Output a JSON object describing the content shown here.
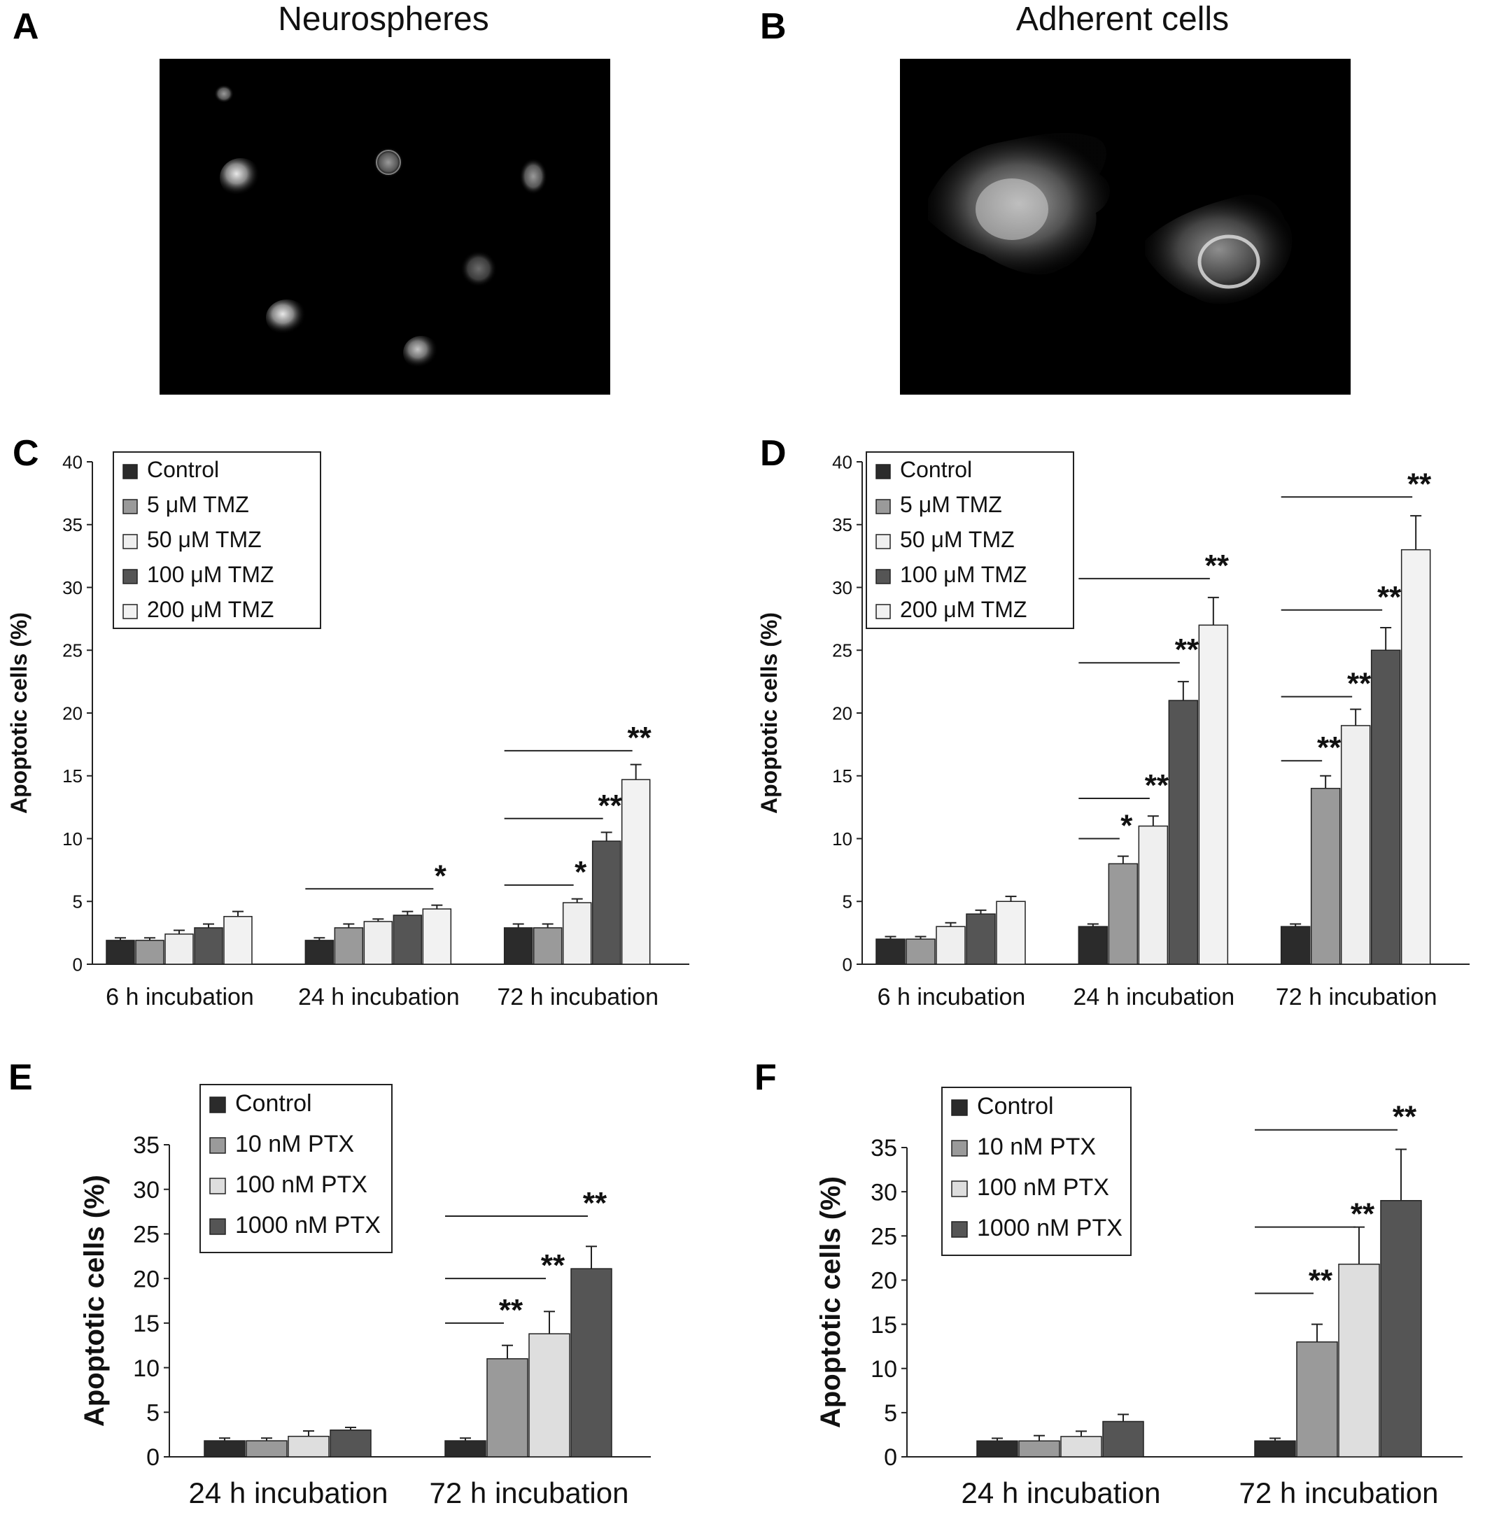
{
  "panels": {
    "A": {
      "letter": "A",
      "title": "Neurospheres"
    },
    "B": {
      "letter": "B",
      "title": "Adherent cells"
    },
    "C": {
      "letter": "C"
    },
    "D": {
      "letter": "D"
    },
    "E": {
      "letter": "E"
    },
    "F": {
      "letter": "F"
    }
  },
  "colors": {
    "control": "#2b2b2b",
    "dose1": "#9a9a9a",
    "dose2": "#efefef",
    "dose3": "#555555",
    "dose4": "#f2f2f2",
    "ptx_light": "#dedede"
  },
  "chart_data": [
    {
      "id": "C",
      "type": "bar",
      "ylabel": "Apoptotic cells (%)",
      "ylim": [
        0,
        40
      ],
      "yticks": [
        0,
        5,
        10,
        15,
        20,
        25,
        30,
        35,
        40
      ],
      "categories": [
        "6 h incubation",
        "24 h incubation",
        "72 h incubation"
      ],
      "legend_position": "top-left",
      "series": [
        {
          "name": "Control",
          "color": "#2b2b2b",
          "values": [
            1.9,
            1.9,
            2.9
          ],
          "errors": [
            0.2,
            0.2,
            0.3
          ]
        },
        {
          "name": "5 μM TMZ",
          "color": "#9a9a9a",
          "values": [
            1.9,
            2.9,
            2.9
          ],
          "errors": [
            0.2,
            0.3,
            0.3
          ]
        },
        {
          "name": "50 μM TMZ",
          "color": "#efefef",
          "values": [
            2.4,
            3.4,
            4.9
          ],
          "errors": [
            0.3,
            0.2,
            0.3
          ]
        },
        {
          "name": "100 μM TMZ",
          "color": "#555555",
          "values": [
            2.9,
            3.9,
            9.8
          ],
          "errors": [
            0.3,
            0.3,
            0.7
          ]
        },
        {
          "name": "200 μM TMZ",
          "color": "#f2f2f2",
          "values": [
            3.8,
            4.4,
            14.7
          ],
          "errors": [
            0.4,
            0.3,
            1.2
          ]
        }
      ],
      "annotations": [
        {
          "category": 1,
          "from": 0,
          "to": 4,
          "label": "*",
          "y": 6.0
        },
        {
          "category": 2,
          "from": 0,
          "to": 2,
          "label": "*",
          "y": 6.3
        },
        {
          "category": 2,
          "from": 0,
          "to": 3,
          "label": "**",
          "y": 11.6
        },
        {
          "category": 2,
          "from": 0,
          "to": 4,
          "label": "**",
          "y": 17.0
        }
      ]
    },
    {
      "id": "D",
      "type": "bar",
      "ylabel": "Apoptotic cells (%)",
      "ylim": [
        0,
        40
      ],
      "yticks": [
        0,
        5,
        10,
        15,
        20,
        25,
        30,
        35,
        40
      ],
      "categories": [
        "6 h incubation",
        "24 h incubation",
        "72 h incubation"
      ],
      "legend_position": "top-left",
      "series": [
        {
          "name": "Control",
          "color": "#2b2b2b",
          "values": [
            2.0,
            3.0,
            3.0
          ],
          "errors": [
            0.2,
            0.2,
            0.2
          ]
        },
        {
          "name": "5 μM TMZ",
          "color": "#9a9a9a",
          "values": [
            2.0,
            8.0,
            14.0
          ],
          "errors": [
            0.2,
            0.6,
            1.0
          ]
        },
        {
          "name": "50 μM TMZ",
          "color": "#efefef",
          "values": [
            3.0,
            11.0,
            19.0
          ],
          "errors": [
            0.3,
            0.8,
            1.3
          ]
        },
        {
          "name": "100 μM TMZ",
          "color": "#555555",
          "values": [
            4.0,
            21.0,
            25.0
          ],
          "errors": [
            0.3,
            1.5,
            1.8
          ]
        },
        {
          "name": "200 μM TMZ",
          "color": "#f2f2f2",
          "values": [
            5.0,
            27.0,
            33.0
          ],
          "errors": [
            0.4,
            2.2,
            2.7
          ]
        }
      ],
      "annotations": [
        {
          "category": 1,
          "from": 0,
          "to": 1,
          "label": "*",
          "y": 10.0
        },
        {
          "category": 1,
          "from": 0,
          "to": 2,
          "label": "**",
          "y": 13.2
        },
        {
          "category": 1,
          "from": 0,
          "to": 3,
          "label": "**",
          "y": 24.0
        },
        {
          "category": 1,
          "from": 0,
          "to": 4,
          "label": "**",
          "y": 30.7
        },
        {
          "category": 2,
          "from": 0,
          "to": 1,
          "label": "**",
          "y": 16.2
        },
        {
          "category": 2,
          "from": 0,
          "to": 2,
          "label": "**",
          "y": 21.3
        },
        {
          "category": 2,
          "from": 0,
          "to": 3,
          "label": "**",
          "y": 28.2
        },
        {
          "category": 2,
          "from": 0,
          "to": 4,
          "label": "**",
          "y": 37.2
        }
      ]
    },
    {
      "id": "E",
      "type": "bar",
      "ylabel": "Apoptotic cells (%)",
      "ylim": [
        0,
        35
      ],
      "yticks": [
        0,
        5,
        10,
        15,
        20,
        25,
        30,
        35
      ],
      "categories": [
        "24 h incubation",
        "72 h incubation"
      ],
      "legend_position": "top-left",
      "series": [
        {
          "name": "Control",
          "color": "#2b2b2b",
          "values": [
            1.8,
            1.8
          ],
          "errors": [
            0.3,
            0.3
          ]
        },
        {
          "name": "10 nM PTX",
          "color": "#9a9a9a",
          "values": [
            1.8,
            11.0
          ],
          "errors": [
            0.3,
            1.5
          ]
        },
        {
          "name": "100 nM PTX",
          "color": "#dedede",
          "values": [
            2.3,
            13.8
          ],
          "errors": [
            0.6,
            2.5
          ]
        },
        {
          "name": "1000 nM PTX",
          "color": "#555555",
          "values": [
            3.0,
            21.1
          ],
          "errors": [
            0.3,
            2.5
          ]
        }
      ],
      "annotations": [
        {
          "category": 1,
          "from": 0,
          "to": 1,
          "label": "**",
          "y": 15.0
        },
        {
          "category": 1,
          "from": 0,
          "to": 2,
          "label": "**",
          "y": 20.0
        },
        {
          "category": 1,
          "from": 0,
          "to": 3,
          "label": "**",
          "y": 27.0
        }
      ]
    },
    {
      "id": "F",
      "type": "bar",
      "ylabel": "Apoptotic cells (%)",
      "ylim": [
        0,
        35
      ],
      "yticks": [
        0,
        5,
        10,
        15,
        20,
        25,
        30,
        35
      ],
      "categories": [
        "24 h incubation",
        "72 h incubation"
      ],
      "legend_position": "top-left",
      "series": [
        {
          "name": "Control",
          "color": "#2b2b2b",
          "values": [
            1.8,
            1.8
          ],
          "errors": [
            0.3,
            0.3
          ]
        },
        {
          "name": "10 nM PTX",
          "color": "#9a9a9a",
          "values": [
            1.8,
            13.0
          ],
          "errors": [
            0.6,
            2.0
          ]
        },
        {
          "name": "100 nM PTX",
          "color": "#dedede",
          "values": [
            2.3,
            21.8
          ],
          "errors": [
            0.6,
            4.2
          ]
        },
        {
          "name": "1000 nM PTX",
          "color": "#555555",
          "values": [
            4.0,
            29.0
          ],
          "errors": [
            0.8,
            5.8
          ]
        }
      ],
      "annotations": [
        {
          "category": 1,
          "from": 0,
          "to": 1,
          "label": "**",
          "y": 18.5
        },
        {
          "category": 1,
          "from": 0,
          "to": 2,
          "label": "**",
          "y": 26.0
        },
        {
          "category": 1,
          "from": 0,
          "to": 3,
          "label": "**",
          "y": 37.0
        }
      ]
    }
  ]
}
